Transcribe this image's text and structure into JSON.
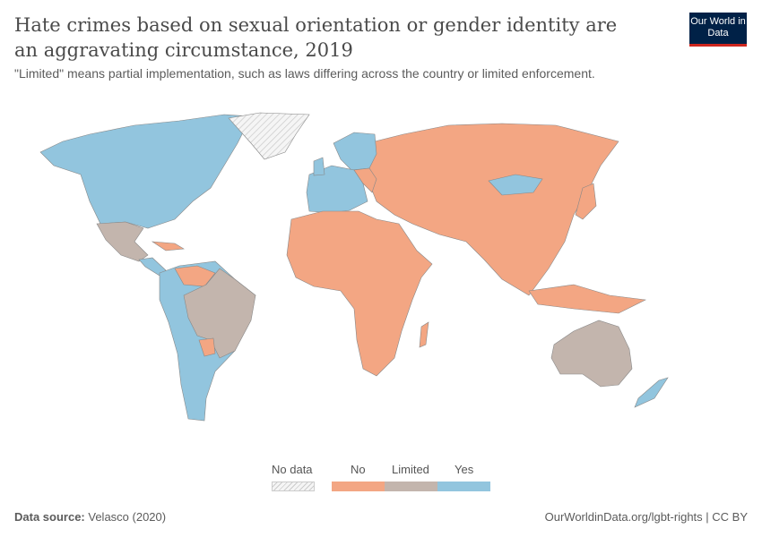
{
  "header": {
    "title": "Hate crimes based on sexual orientation or gender identity are an aggravating circumstance, 2019",
    "subtitle": "\"Limited\" means partial implementation, such as laws differing across the country or limited enforcement.",
    "logo": "Our World in Data"
  },
  "colors": {
    "no": "#f3a683",
    "limited": "#c3b5ad",
    "yes": "#92c5de",
    "no_data": "#eeeeee",
    "border": "#888888"
  },
  "legend": {
    "no_data": "No data",
    "items": [
      {
        "label": "No",
        "color": "#f3a683"
      },
      {
        "label": "Limited",
        "color": "#c3b5ad"
      },
      {
        "label": "Yes",
        "color": "#92c5de"
      }
    ]
  },
  "footer": {
    "source_label": "Data source:",
    "source": "Velasco (2020)",
    "link": "OurWorldinData.org/lgbt-rights | CC BY"
  }
}
